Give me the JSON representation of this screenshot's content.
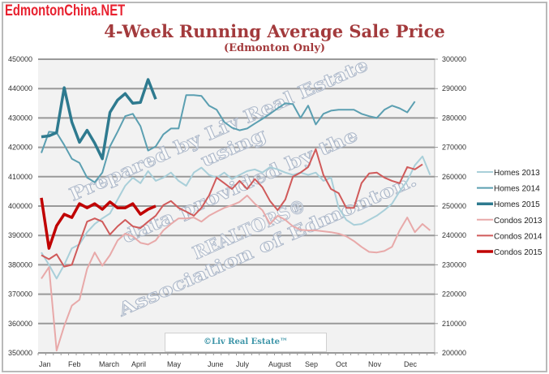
{
  "brand": "EdmontonChina.NET",
  "watermark": [
    "Prepared by Liv Real Estate",
    "using",
    "data provided by the",
    "REALTORS®",
    "Association of Edmonton."
  ],
  "copyright": "©Liv Real Estate™",
  "chart_data": {
    "type": "line",
    "title": "4-Week Running Average Sale Price",
    "subtitle": "(Edmonton Only)",
    "x_unit": "week of year",
    "x_tick_labels": [
      "Jan",
      "Feb",
      "March",
      "April",
      "May",
      "June",
      "July",
      "August",
      "Sep",
      "Oct",
      "Nov",
      "Dec"
    ],
    "y_left": {
      "range": [
        350000,
        450000
      ],
      "ticks": [
        "350000",
        "360000",
        "370000",
        "380000",
        "390000",
        "400000",
        "410000",
        "420000",
        "430000",
        "440000",
        "450000"
      ]
    },
    "y_right": {
      "range": [
        200000,
        300000
      ],
      "ticks": [
        "200000",
        "210000",
        "220000",
        "230000",
        "240000",
        "250000",
        "260000",
        "270000",
        "280000",
        "290000",
        "300000"
      ]
    },
    "grid": true,
    "legend_position": "right",
    "series": [
      {
        "name": "Homes 2013",
        "axis": "left",
        "color": "#a9cfd9",
        "values": [
          384200,
          380000,
          375300,
          380000,
          385600,
          387000,
          391100,
          393900,
          395800,
          397500,
          402200,
          406900,
          409700,
          407800,
          411900,
          408600,
          409700,
          411400,
          408600,
          406900,
          411400,
          413100,
          410600,
          409700,
          411400,
          409200,
          410600,
          411900,
          412500,
          411400,
          413300,
          412500,
          411400,
          410600,
          411400,
          410600,
          411400,
          408600,
          409700,
          399400,
          395300,
          393600,
          393900,
          395300,
          396700,
          398600,
          400800,
          405000,
          408600,
          413900,
          416900,
          410600
        ]
      },
      {
        "name": "Homes 2014",
        "axis": "left",
        "color": "#5b9fb1",
        "values": [
          418100,
          425300,
          425000,
          420800,
          416100,
          414700,
          409700,
          408100,
          411400,
          420300,
          425300,
          430600,
          431400,
          427200,
          418900,
          420300,
          424400,
          426400,
          426400,
          437800,
          437800,
          437500,
          434200,
          432800,
          428600,
          426700,
          425800,
          426400,
          428100,
          429700,
          431400,
          433300,
          435000,
          434700,
          430000,
          434200,
          427800,
          431400,
          432500,
          432800,
          432800,
          432800,
          431400,
          430600,
          430000,
          432800,
          434200,
          433300,
          431900,
          435600
        ]
      },
      {
        "name": "Homes 2015",
        "axis": "left",
        "color": "#2e7a8f",
        "values": [
          423600,
          423900,
          425000,
          440300,
          428600,
          421700,
          425800,
          421400,
          416100,
          431900,
          436100,
          438300,
          435000,
          435300,
          443100,
          436400
        ]
      },
      {
        "name": "Condos 2013",
        "axis": "right",
        "color": "#e8a9a9",
        "values": [
          225300,
          229200,
          200800,
          209200,
          216100,
          218100,
          228600,
          234200,
          229700,
          233300,
          238300,
          240600,
          239700,
          237500,
          236900,
          238300,
          241700,
          243900,
          245800,
          245800,
          246100,
          244700,
          246700,
          248100,
          249400,
          250300,
          251400,
          253600,
          250800,
          248600,
          243900,
          246700,
          245300,
          243100,
          241900,
          241700,
          241700,
          241400,
          241100,
          240600,
          239700,
          238100,
          236100,
          234400,
          234200,
          234700,
          236100,
          241700,
          246100,
          241100,
          243900,
          241700
        ]
      },
      {
        "name": "Condos 2014",
        "axis": "right",
        "color": "#d05a5a",
        "values": [
          233300,
          231900,
          233600,
          229400,
          230000,
          237500,
          244700,
          245800,
          244700,
          240300,
          243100,
          245300,
          243100,
          242500,
          244700,
          246700,
          250300,
          251700,
          249400,
          248100,
          246700,
          249400,
          253600,
          259700,
          257800,
          255800,
          258600,
          255800,
          259200,
          256400,
          251700,
          248600,
          252200,
          260000,
          261400,
          263300,
          269400,
          260600,
          255800,
          254400,
          249400,
          249400,
          257800,
          261100,
          261400,
          259700,
          258600,
          257800,
          263300,
          262500,
          264200
        ]
      },
      {
        "name": "Condos 2015",
        "axis": "right",
        "color": "#c00000",
        "values": [
          252800,
          235600,
          243300,
          247200,
          246100,
          250800,
          249400,
          250800,
          248900,
          251400,
          249400,
          249400,
          250800,
          247200,
          248900,
          250000
        ]
      }
    ]
  }
}
